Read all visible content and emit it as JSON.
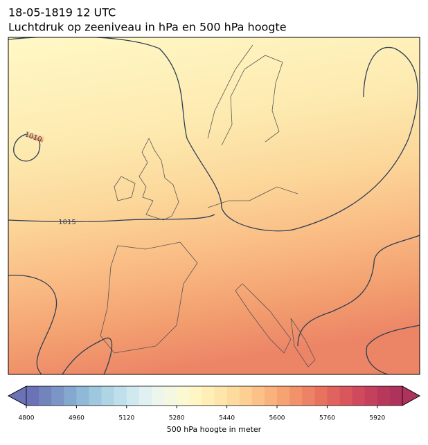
{
  "title": "18-05-1819 12 UTC",
  "subtitle": "Luchtdruk op zeeniveau in hPa en 500 hPa hoogte",
  "isobar_labels": [
    "1010",
    "1015"
  ],
  "colorbar": {
    "label": "500 hPa hoogte in meter",
    "levels": [
      4800,
      4840,
      4880,
      4920,
      4960,
      5000,
      5040,
      5080,
      5120,
      5160,
      5200,
      5240,
      5280,
      5320,
      5360,
      5400,
      5440,
      5480,
      5520,
      5560,
      5600,
      5640,
      5680,
      5720,
      5760,
      5800,
      5840,
      5880,
      5920,
      5960,
      6000
    ],
    "colors": [
      "#6b72b5",
      "#7384bd",
      "#7b96c6",
      "#84a8cf",
      "#8fb9d7",
      "#9fc8de",
      "#afd5e4",
      "#bfe0ea",
      "#d0e9ef",
      "#e0f1f1",
      "#ecf6ed",
      "#f4f8e1",
      "#fbf9d2",
      "#fff6c4",
      "#ffefb7",
      "#fee6aa",
      "#fddb9d",
      "#fccf92",
      "#fbc186",
      "#f9b27b",
      "#f6a272",
      "#f2926a",
      "#ed8264",
      "#e7735f",
      "#e0645d",
      "#d8565c",
      "#cf4a5c",
      "#c4405c",
      "#b8385c",
      "#ad325c"
    ],
    "ticks": [
      4800,
      4960,
      5120,
      5280,
      5440,
      5600,
      5760,
      5920
    ]
  }
}
